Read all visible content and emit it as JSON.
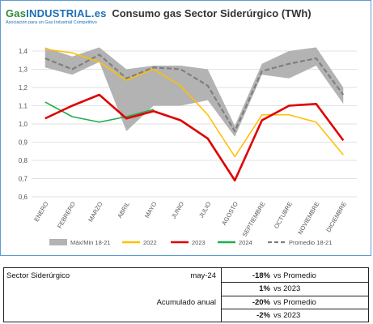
{
  "logo": {
    "brand_gas": "Gas",
    "brand_ind": "INDUSTRIAL",
    "brand_es": ".es",
    "tagline": "Asociación para un Gas Industrial Competitivo"
  },
  "chart_data": {
    "type": "line",
    "title": "Consumo gas Sector Siderúrgico (TWh)",
    "categories": [
      "ENERO",
      "FEBRERO",
      "MARZO",
      "ABRIL",
      "MAYO",
      "JUNIO",
      "JULIO",
      "AGOSTO",
      "SEPTIEMBRE",
      "OCTUBRE",
      "NOVIEMBRE",
      "DICIEMBRE"
    ],
    "ylim": [
      0.6,
      1.4
    ],
    "yticks": [
      "0,6",
      "0,7",
      "0,8",
      "0,9",
      "1,0",
      "1,1",
      "1,2",
      "1,3",
      "1,4"
    ],
    "grid": true,
    "legend_position": "bottom",
    "band": {
      "name": "Máx/Min 18-21",
      "color": "#b3b3b3",
      "max": [
        1.42,
        1.37,
        1.42,
        1.3,
        1.32,
        1.32,
        1.3,
        0.99,
        1.33,
        1.4,
        1.42,
        1.2
      ],
      "min": [
        1.31,
        1.27,
        1.34,
        0.96,
        1.1,
        1.1,
        1.13,
        0.93,
        1.27,
        1.25,
        1.32,
        1.11
      ]
    },
    "series": [
      {
        "name": "2022",
        "color": "#ffc000",
        "style": "solid",
        "values": [
          1.41,
          1.39,
          1.34,
          1.24,
          1.3,
          1.21,
          1.05,
          0.82,
          1.05,
          1.05,
          1.01,
          0.83
        ]
      },
      {
        "name": "2023",
        "color": "#e00000",
        "style": "solid",
        "values": [
          1.03,
          1.1,
          1.16,
          1.03,
          1.07,
          1.02,
          0.92,
          0.69,
          1.02,
          1.1,
          1.11,
          0.91
        ]
      },
      {
        "name": "2024",
        "color": "#1fae4b",
        "style": "solid",
        "values": [
          1.12,
          1.04,
          1.01,
          1.04,
          1.08,
          null,
          null,
          null,
          null,
          null,
          null,
          null
        ]
      },
      {
        "name": "Promedio 18-21",
        "color": "#7f7f7f",
        "style": "dashed",
        "values": [
          1.36,
          1.3,
          1.38,
          1.25,
          1.31,
          1.3,
          1.21,
          0.96,
          1.29,
          1.33,
          1.36,
          1.16
        ]
      }
    ]
  },
  "summary": {
    "sector_label": "Sector Siderúrgico",
    "period": "may-24",
    "acumulado_label": "Acumulado anual",
    "rows": [
      {
        "value": "-18%",
        "label": "vs Promedio"
      },
      {
        "value": "1%",
        "label": "vs 2023"
      },
      {
        "value": "-20%",
        "label": "vs Promedio"
      },
      {
        "value": "-2%",
        "label": "vs 2023"
      }
    ]
  }
}
